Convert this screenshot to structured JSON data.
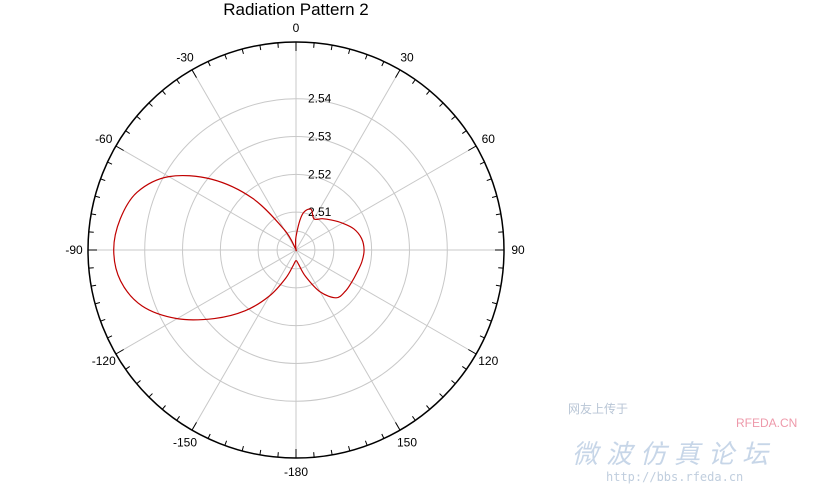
{
  "chart_data": {
    "type": "polar-line",
    "title": "Radiation Pattern 2",
    "angular_ticks": [
      0,
      30,
      60,
      90,
      120,
      150,
      180,
      -150,
      -120,
      -90,
      -60,
      -30
    ],
    "angular_tick_labels": [
      "0",
      "30",
      "60",
      "90",
      "120",
      "150",
      "-180",
      "-150",
      "-120",
      "-90",
      "-60",
      "-30"
    ],
    "radial_ticks": [
      2.51,
      2.52,
      2.53,
      2.54
    ],
    "radial_tick_labels": [
      "2.51",
      "2.52",
      "2.53",
      "2.54"
    ],
    "rlim": [
      2.5,
      2.555
    ],
    "grid": true,
    "series": [
      {
        "color": "#c00000",
        "theta": [
          0,
          10,
          20,
          30,
          40,
          50,
          60,
          70,
          80,
          90,
          100,
          110,
          120,
          130,
          140,
          150,
          160,
          170,
          180,
          -170,
          -160,
          -150,
          -140,
          -130,
          -120,
          -110,
          -100,
          -90,
          -80,
          -70,
          -60,
          -50,
          -40,
          -30,
          -20,
          -10
        ],
        "r": [
          2.5035,
          2.5095,
          2.5115,
          2.5095,
          2.5108,
          2.5123,
          2.5142,
          2.5163,
          2.5176,
          2.518,
          2.5177,
          2.5172,
          2.517,
          2.517,
          2.5165,
          2.5128,
          2.5075,
          2.5038,
          2.5028,
          2.5041,
          2.5079,
          2.514,
          2.521,
          2.5282,
          2.5363,
          2.5433,
          2.5471,
          2.5482,
          2.5472,
          2.5447,
          2.5388,
          2.5291,
          2.5178,
          2.5062,
          2.5005,
          2.5002
        ]
      }
    ]
  },
  "watermark": {
    "small_text": "网友上传于",
    "brand": "RFEDA.CN",
    "big_text": "微波仿真论坛",
    "url": "http://bbs.rfeda.cn"
  }
}
